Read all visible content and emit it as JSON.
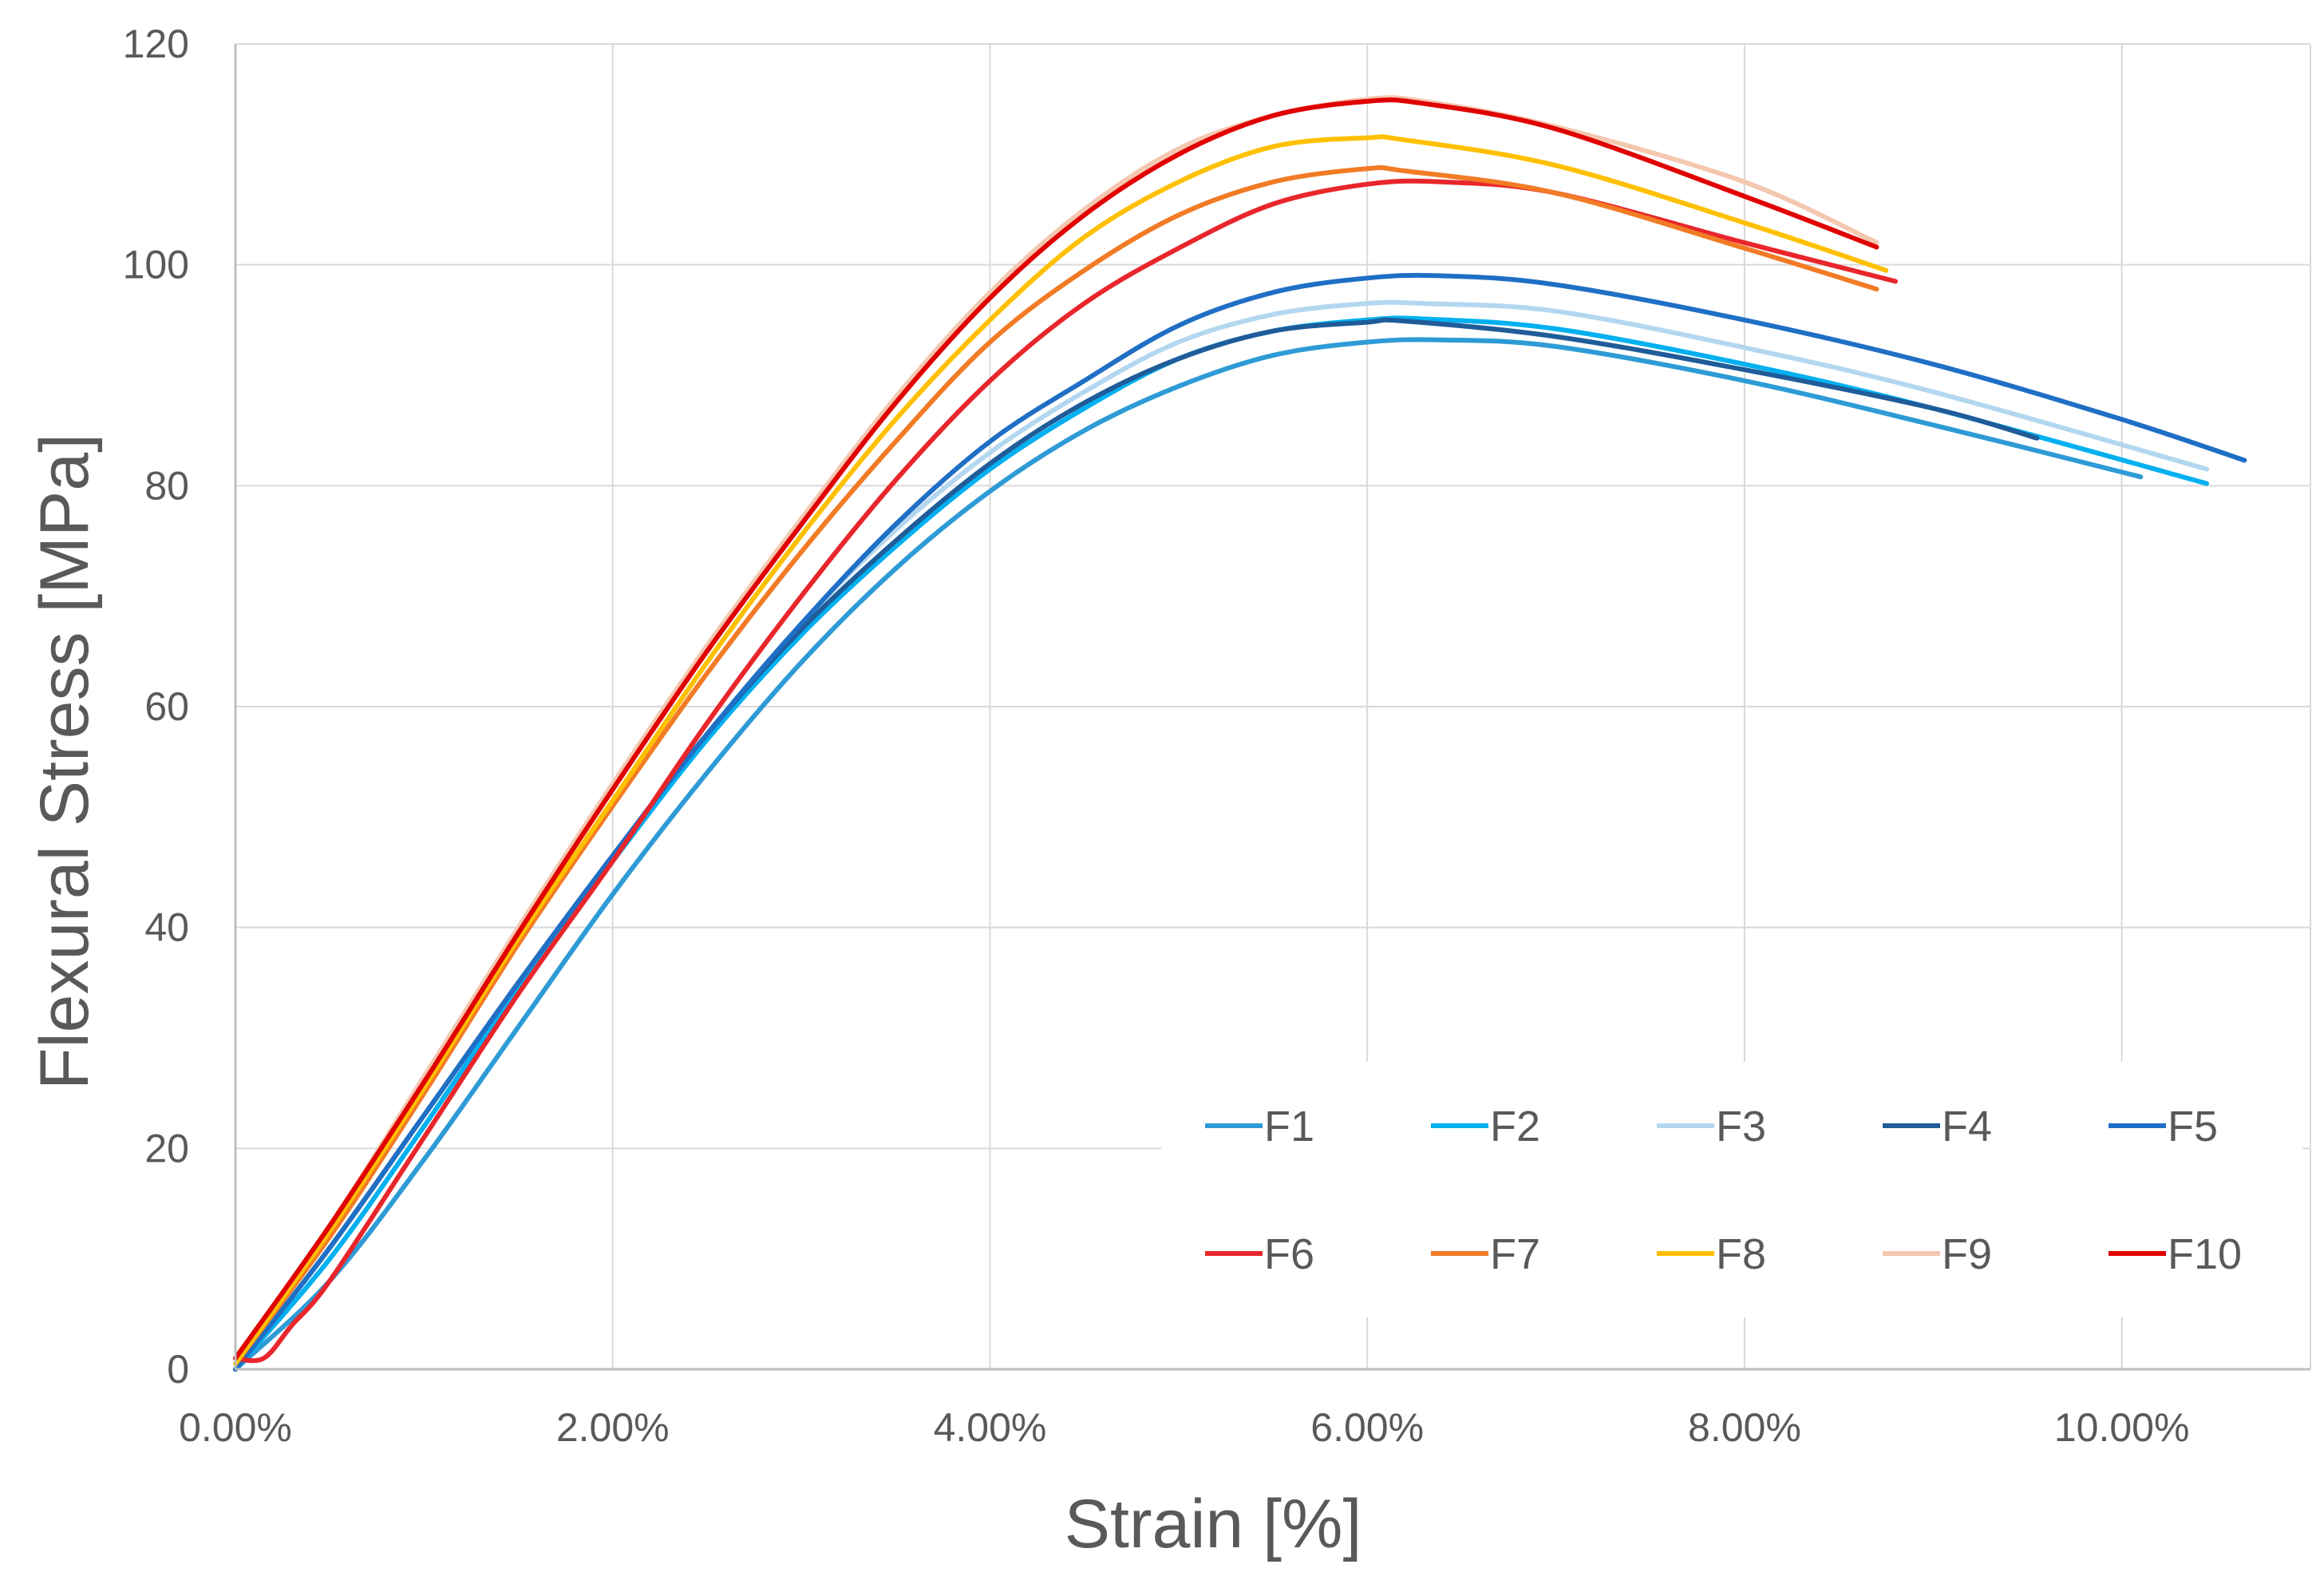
{
  "chart_data": {
    "type": "line",
    "title": "",
    "xlabel": "Strain [%]",
    "ylabel": "Flexural Stress [MPa]",
    "xlim": [
      0,
      11.0
    ],
    "ylim": [
      0,
      120
    ],
    "x_ticks": [
      0,
      2,
      4,
      6,
      8,
      10
    ],
    "x_tick_labels": [
      "0.00%",
      "2.00%",
      "4.00%",
      "6.00%",
      "8.00%",
      "10.00%"
    ],
    "y_ticks": [
      0,
      20,
      40,
      60,
      80,
      100,
      120
    ],
    "y_tick_labels": [
      "0",
      "20",
      "40",
      "60",
      "80",
      "100",
      "120"
    ],
    "grid": true,
    "legend_position": "bottom-right",
    "series": [
      {
        "name": "F1",
        "color": "#2E9BD6",
        "x": [
          0,
          0.5,
          1.0,
          1.5,
          2.0,
          2.5,
          3.0,
          3.5,
          4.0,
          4.5,
          5.0,
          5.5,
          6.0,
          6.4,
          7.0,
          8.0,
          9.0,
          10.1
        ],
        "y": [
          0,
          8,
          19,
          31,
          43,
          54,
          64,
          72.5,
          79.5,
          85,
          89,
          91.8,
          93,
          93.2,
          92.6,
          89.5,
          85.5,
          80.8
        ]
      },
      {
        "name": "F2",
        "color": "#00B0F0",
        "x": [
          0,
          0.5,
          1.0,
          1.5,
          2.0,
          2.5,
          3.0,
          3.5,
          4.0,
          4.5,
          5.0,
          5.5,
          6.0,
          6.3,
          7.0,
          8.0,
          9.0,
          10.45
        ],
        "y": [
          0,
          10,
          22,
          34.5,
          46,
          57,
          66.5,
          74.5,
          81.5,
          87,
          91.5,
          94,
          95,
          95.1,
          94.2,
          91,
          87,
          80.2
        ]
      },
      {
        "name": "F3",
        "color": "#B4D7F0",
        "x": [
          0,
          0.5,
          1.0,
          1.5,
          2.0,
          2.5,
          3.0,
          3.5,
          4.0,
          4.5,
          5.0,
          5.5,
          6.0,
          6.3,
          7.0,
          8.0,
          9.0,
          10.45
        ],
        "y": [
          0,
          11,
          23,
          35,
          46.5,
          57.5,
          67.5,
          76,
          83,
          88.5,
          93,
          95.5,
          96.5,
          96.5,
          95.8,
          92.5,
          88.5,
          81.5
        ]
      },
      {
        "name": "F4",
        "color": "#1F5C99",
        "x": [
          0,
          0.5,
          1.0,
          1.5,
          2.0,
          2.5,
          3.0,
          3.5,
          4.0,
          4.5,
          5.0,
          5.5,
          6.0,
          6.2,
          7.0,
          8.0,
          9.0,
          9.55
        ],
        "y": [
          0,
          11,
          23,
          35,
          46.5,
          57.5,
          67,
          75,
          82,
          87.5,
          91.5,
          94,
          94.8,
          94.9,
          93.5,
          90.5,
          87,
          84.3
        ]
      },
      {
        "name": "F5",
        "color": "#1F6FC5",
        "x": [
          0,
          0.5,
          1.0,
          1.5,
          2.0,
          2.5,
          3.0,
          3.5,
          4.0,
          4.5,
          5.0,
          5.5,
          6.0,
          6.4,
          7.0,
          8.0,
          9.0,
          10.0,
          10.65
        ],
        "y": [
          0,
          11,
          23,
          35,
          46.5,
          57.5,
          67.5,
          76.5,
          84,
          89.5,
          94.5,
          97.5,
          98.8,
          99,
          98.2,
          95,
          91,
          86,
          82.3
        ]
      },
      {
        "name": "F6",
        "color": "#E8262B",
        "x": [
          0,
          0.15,
          0.3,
          0.5,
          1.0,
          1.5,
          2.0,
          2.5,
          3.0,
          3.5,
          4.0,
          4.5,
          5.0,
          5.5,
          6.0,
          6.4,
          7.0,
          8.0,
          8.8
        ],
        "y": [
          1,
          1,
          4,
          8,
          21,
          34,
          46,
          58.5,
          70,
          80.5,
          89.5,
          96.5,
          101.5,
          105.5,
          107.3,
          107.5,
          106.5,
          102,
          98.5
        ]
      },
      {
        "name": "F7",
        "color": "#F27B26",
        "x": [
          0,
          0.5,
          1.0,
          1.5,
          2.0,
          2.5,
          3.0,
          3.5,
          4.0,
          4.5,
          5.0,
          5.5,
          6.0,
          6.2,
          7.0,
          8.0,
          8.7
        ],
        "y": [
          0.5,
          12,
          25,
          38.5,
          51,
          63,
          74,
          84,
          93,
          99.5,
          104.5,
          107.5,
          108.7,
          108.5,
          106.5,
          101.5,
          97.8
        ]
      },
      {
        "name": "F8",
        "color": "#FFC000",
        "x": [
          0,
          0.5,
          1.0,
          1.5,
          2.0,
          2.5,
          3.0,
          3.5,
          4.0,
          4.5,
          5.0,
          5.5,
          6.0,
          6.2,
          7.0,
          8.0,
          8.75
        ],
        "y": [
          0.5,
          12.5,
          25.5,
          39,
          51.5,
          64,
          75.5,
          86,
          95,
          102.5,
          107.5,
          110.7,
          111.5,
          111.3,
          109,
          103.8,
          99.5
        ]
      },
      {
        "name": "F9",
        "color": "#F4C7B0",
        "x": [
          0,
          0.5,
          1.0,
          1.5,
          2.0,
          2.5,
          3.0,
          3.5,
          4.0,
          4.5,
          5.0,
          5.5,
          6.0,
          6.3,
          7.0,
          8.0,
          8.7
        ],
        "y": [
          1,
          13,
          26.5,
          40,
          53,
          65.5,
          77,
          88,
          97.5,
          105,
          110.5,
          113.5,
          115,
          114.8,
          112.5,
          107.5,
          102
        ]
      },
      {
        "name": "F10",
        "color": "#E00000",
        "x": [
          0,
          0.5,
          1.0,
          1.5,
          2.0,
          2.5,
          3.0,
          3.5,
          4.0,
          4.5,
          5.0,
          5.5,
          6.0,
          6.3,
          7.0,
          8.0,
          8.7
        ],
        "y": [
          1,
          13,
          26,
          39.5,
          52.5,
          65,
          76.5,
          87.5,
          97,
          104.5,
          110,
          113.5,
          114.8,
          114.6,
          112.3,
          106.2,
          101.6
        ]
      }
    ]
  }
}
